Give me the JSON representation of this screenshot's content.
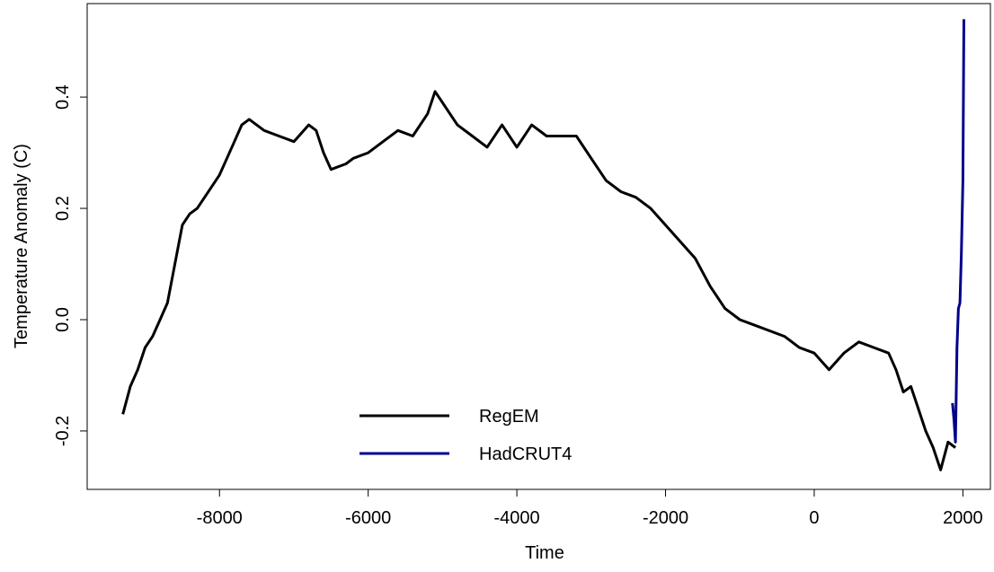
{
  "chart_data": {
    "type": "line",
    "xlabel": "Time",
    "ylabel": "Temperature Anomaly (C)",
    "xlim": [
      -9780,
      2370
    ],
    "ylim": [
      -0.305,
      0.568
    ],
    "xticks": [
      -8000,
      -6000,
      -4000,
      -2000,
      0,
      2000
    ],
    "yticks": [
      {
        "value": -0.2,
        "label": "-0.2"
      },
      {
        "value": 0,
        "label": "0.0"
      },
      {
        "value": 0.2,
        "label": "0.2"
      },
      {
        "value": 0.4,
        "label": "0.4"
      }
    ],
    "legend": "bottom",
    "series": [
      {
        "name": "RegEM",
        "color": "#000000",
        "x": [
          -9300,
          -9200,
          -9100,
          -9000,
          -8900,
          -8800,
          -8700,
          -8600,
          -8500,
          -8400,
          -8300,
          -8200,
          -8000,
          -7900,
          -7800,
          -7700,
          -7600,
          -7400,
          -7200,
          -7000,
          -6800,
          -6700,
          -6600,
          -6500,
          -6300,
          -6200,
          -6000,
          -5800,
          -5600,
          -5400,
          -5200,
          -5100,
          -5000,
          -4800,
          -4600,
          -4400,
          -4200,
          -4000,
          -3800,
          -3600,
          -3400,
          -3200,
          -3000,
          -2800,
          -2600,
          -2400,
          -2200,
          -2000,
          -1800,
          -1600,
          -1400,
          -1200,
          -1000,
          -800,
          -600,
          -400,
          -200,
          0,
          200,
          400,
          600,
          800,
          1000,
          1100,
          1200,
          1300,
          1400,
          1500,
          1600,
          1700,
          1800,
          1900
        ],
        "values": [
          -0.17,
          -0.12,
          -0.09,
          -0.05,
          -0.03,
          0.0,
          0.03,
          0.1,
          0.17,
          0.19,
          0.2,
          0.22,
          0.26,
          0.29,
          0.32,
          0.35,
          0.36,
          0.34,
          0.33,
          0.32,
          0.35,
          0.34,
          0.3,
          0.27,
          0.28,
          0.29,
          0.3,
          0.32,
          0.34,
          0.33,
          0.37,
          0.41,
          0.39,
          0.35,
          0.33,
          0.31,
          0.35,
          0.31,
          0.35,
          0.33,
          0.33,
          0.33,
          0.29,
          0.25,
          0.23,
          0.22,
          0.2,
          0.17,
          0.14,
          0.11,
          0.06,
          0.02,
          0.0,
          -0.01,
          -0.02,
          -0.03,
          -0.05,
          -0.06,
          -0.09,
          -0.06,
          -0.04,
          -0.05,
          -0.06,
          -0.09,
          -0.13,
          -0.12,
          -0.16,
          -0.2,
          -0.23,
          -0.27,
          -0.22,
          -0.23
        ]
      },
      {
        "name": "HadCRUT4",
        "color": "#00008b",
        "x": [
          1860,
          1880,
          1900,
          1920,
          1940,
          1960,
          1980,
          2000,
          2013
        ],
        "values": [
          -0.15,
          -0.18,
          -0.22,
          -0.05,
          0.02,
          0.03,
          0.12,
          0.25,
          0.54
        ]
      }
    ]
  }
}
